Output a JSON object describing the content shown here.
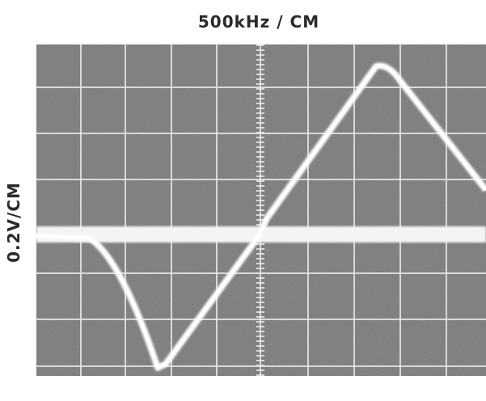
{
  "header": {
    "horizontal_scale": "500kHz / CM"
  },
  "side": {
    "vertical_scale": "0.2V/CM"
  }
}
